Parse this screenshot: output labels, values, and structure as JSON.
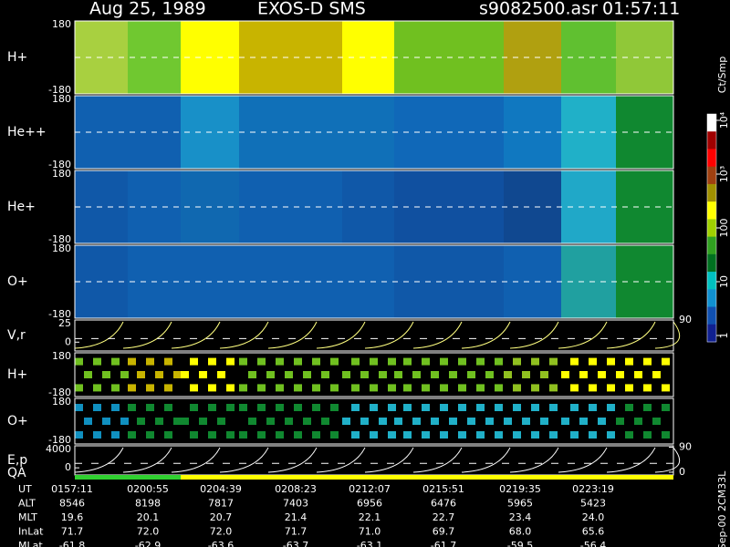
{
  "header": {
    "date": "Aug 25, 1989",
    "instrument": "EXOS-D SMS",
    "file": "s9082500.asr",
    "time": "01:57:11"
  },
  "colorbar": {
    "label": "Ct/Smp",
    "colors": [
      "#ffffff",
      "#a00000",
      "#ff0000",
      "#a04010",
      "#a09000",
      "#ffff00",
      "#a0d000",
      "#30a020",
      "#007020",
      "#00c0c0",
      "#1090d0",
      "#1050b0",
      "#102090"
    ],
    "ticks": [
      1,
      10,
      100,
      {
        "value": 1000,
        "label": "10³"
      },
      {
        "value": 10000,
        "label": "10⁴"
      }
    ]
  },
  "panels": [
    {
      "label": "H+",
      "ylim": [
        -180,
        180
      ],
      "yticks": [
        -180,
        180
      ],
      "colors": [
        "#a8d040",
        "#70c830",
        "#ffff00",
        "#c8b400",
        "#ffff00",
        "#70c020",
        "#b0a010",
        "#60c030",
        "#90c838"
      ]
    },
    {
      "label": "He++",
      "ylim": [
        -180,
        180
      ],
      "yticks": [
        -180,
        180
      ],
      "colors": [
        "#1060b0",
        "#1060b0",
        "#1890c8",
        "#1070b8",
        "#1070b8",
        "#1068b8",
        "#1078c0",
        "#20b0c8",
        "#108830"
      ]
    },
    {
      "label": "He+",
      "ylim": [
        -180,
        180
      ],
      "yticks": [
        -180,
        180
      ],
      "colors": [
        "#1058a8",
        "#1060b0",
        "#1068b0",
        "#1060b0",
        "#1058a8",
        "#1050a0",
        "#104890",
        "#20a8c8",
        "#108830"
      ]
    },
    {
      "label": "O+",
      "ylim": [
        -180,
        180
      ],
      "yticks": [
        -180,
        180
      ],
      "colors": [
        "#1058a8",
        "#1060b0",
        "#1060b0",
        "#1060b0",
        "#1060b0",
        "#1058a8",
        "#1060b0",
        "#20a0a0",
        "#108830"
      ]
    },
    {
      "label": "V,r",
      "ylim": [
        -10,
        25
      ],
      "yticks": [
        0,
        25
      ],
      "y2lim": [
        -10,
        90
      ],
      "y2ticks": [
        90
      ],
      "curve": "#ffff80"
    },
    {
      "label": "H+",
      "ylim": [
        -180,
        180
      ],
      "yticks": [
        -180,
        180
      ],
      "colors": [
        "#70c020",
        "#c8b400",
        "#ffff00",
        "#70c020",
        "#70c020",
        "#70c020",
        "#90c020",
        "#ffff00",
        "#ffff00"
      ],
      "bands": true
    },
    {
      "label": "O+",
      "ylim": [
        -180,
        180
      ],
      "yticks": [
        -180,
        180
      ],
      "colors": [
        "#1090c0",
        "#108830",
        "#108830",
        "#108830",
        "#20b0c8",
        "#20b0c8",
        "#20b0c8",
        "#20b0c8",
        "#108830"
      ],
      "bands": true
    },
    {
      "label": "E,p",
      "ylim": [
        -1300,
        4000
      ],
      "yticks": [
        0,
        4000
      ],
      "y2lim": [
        -10,
        95
      ],
      "y2ticks": [
        0,
        90
      ],
      "curve": "#ffffff"
    }
  ],
  "qa": {
    "label": "QA",
    "colors": [
      "#30d030",
      "#30d030",
      "#ffff00",
      "#ffff00",
      "#ffff00",
      "#ffff00",
      "#ffff00",
      "#ffff00",
      "#ffff00"
    ]
  },
  "axis_table": {
    "rows": [
      {
        "label": "UT",
        "values": [
          "0157:11",
          "0200:55",
          "0204:39",
          "0208:23",
          "0212:07",
          "0215:51",
          "0219:35",
          "0223:19"
        ]
      },
      {
        "label": "ALT",
        "values": [
          "8546",
          "8198",
          "7817",
          "7403",
          "6956",
          "6476",
          "5965",
          "5423"
        ]
      },
      {
        "label": "MLT",
        "values": [
          "19.6",
          "20.1",
          "20.7",
          "21.4",
          "22.1",
          "22.7",
          "23.4",
          "24.0"
        ]
      },
      {
        "label": "InLat",
        "values": [
          "71.7",
          "72.0",
          "72.0",
          "71.7",
          "71.0",
          "69.7",
          "68.0",
          "65.6"
        ]
      },
      {
        "label": "MLat",
        "values": [
          "-61.8",
          "-62.9",
          "-63.6",
          "-63.7",
          "-63.1",
          "-61.7",
          "-59.5",
          "-56.4"
        ]
      }
    ]
  },
  "footer": "Sep-00 2CM33L"
}
